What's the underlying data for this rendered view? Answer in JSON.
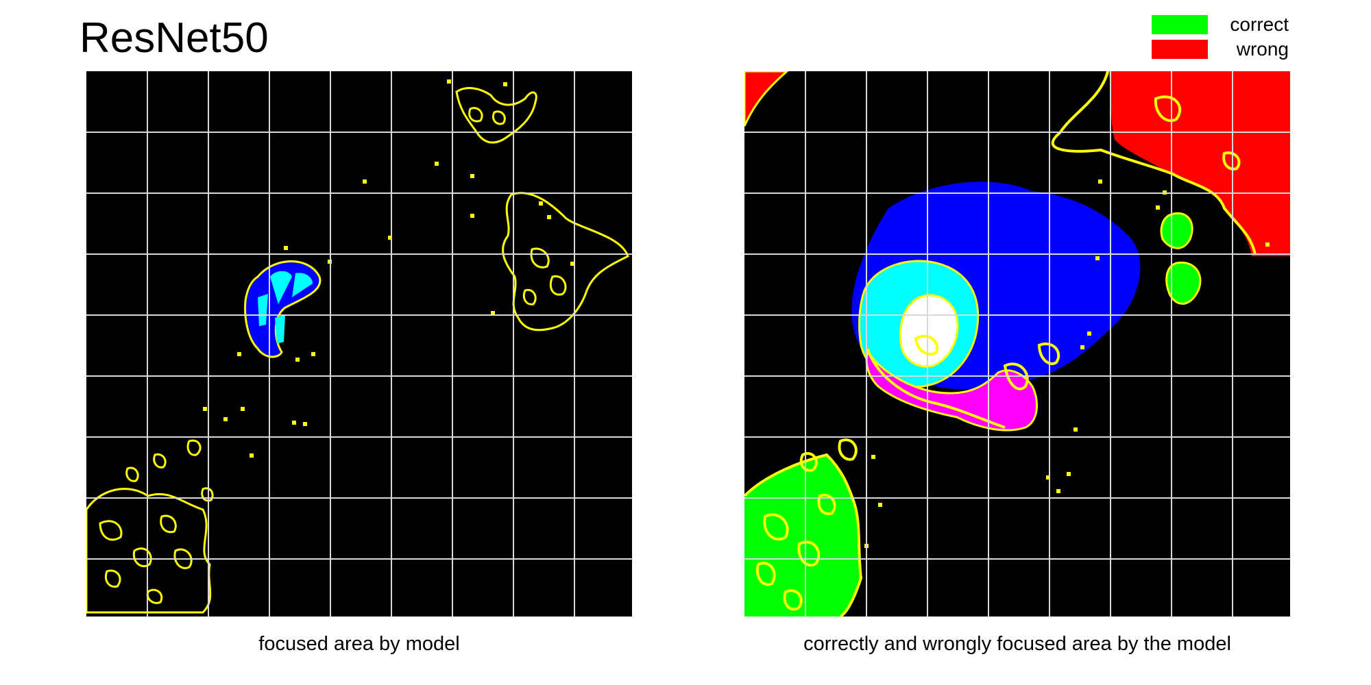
{
  "title": "ResNet50",
  "legend": {
    "items": [
      {
        "label": "correct",
        "color": "#00ff00"
      },
      {
        "label": "wrong",
        "color": "#ff0000"
      }
    ]
  },
  "panels": [
    {
      "id": "left",
      "caption": "focused area by model"
    },
    {
      "id": "right",
      "caption": "correctly and wrongly focused area by the model"
    }
  ],
  "colors": {
    "background": "#000000",
    "grid": "#d9d9d9",
    "contour": "#ffff00",
    "blue": "#0000ff",
    "cyan": "#00ffff",
    "white": "#ffffff",
    "magenta": "#ff00ff",
    "correct": "#00ff00",
    "wrong": "#ff0000"
  }
}
